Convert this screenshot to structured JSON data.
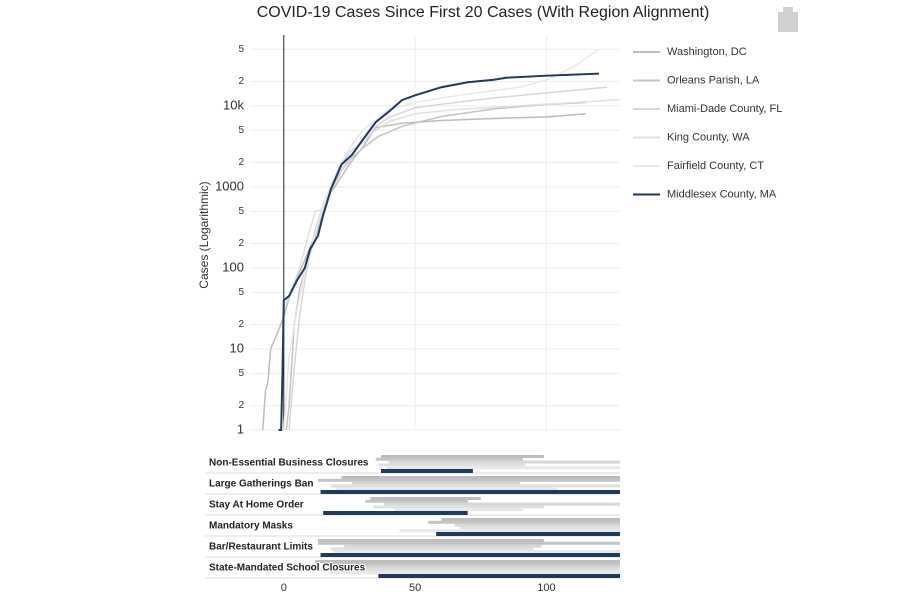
{
  "chart_data": [
    {
      "type": "line",
      "title": "COVID-19 Cases Since First 20 Cases (With Region Alignment)",
      "y_label": "Cases (Logarithmic)",
      "log_y": true,
      "grid": true,
      "legend": "right",
      "xlim": [
        -30,
        128
      ],
      "ylim": [
        1,
        75000
      ],
      "yticks": [
        1,
        2,
        5,
        10,
        {
          "value": 20,
          "label": "2"
        },
        {
          "value": 50,
          "label": "5"
        },
        100,
        {
          "value": 200,
          "label": "2"
        },
        {
          "value": 500,
          "label": "5"
        },
        1000,
        {
          "value": 2000,
          "label": "2"
        },
        {
          "value": 5000,
          "label": "5"
        },
        {
          "value": 10000,
          "label": "10k"
        },
        {
          "value": 20000,
          "label": "2"
        },
        {
          "value": 50000,
          "label": "5"
        }
      ],
      "series": [
        {
          "name": "Washington, DC",
          "color": "#bdbdbd",
          "x": [
            -8,
            -7,
            -6,
            -5,
            -2,
            0,
            3,
            8,
            12,
            18,
            25,
            30,
            35,
            45,
            60,
            80,
            100,
            115
          ],
          "values": [
            1,
            3,
            4,
            10,
            17,
            25,
            55,
            125,
            260,
            850,
            1900,
            3100,
            5400,
            6100,
            6600,
            7000,
            7300,
            8000
          ]
        },
        {
          "name": "Orleans Parish, LA",
          "color": "#c4c4c4",
          "x": [
            1,
            2,
            4,
            6,
            8,
            10,
            14,
            18,
            22,
            26,
            30,
            36,
            45,
            60,
            80,
            100,
            115
          ],
          "values": [
            1,
            2,
            20,
            55,
            90,
            150,
            400,
            900,
            1600,
            2300,
            3000,
            4200,
            5600,
            7400,
            9200,
            10400,
            11000
          ]
        },
        {
          "name": "Miami-Dade County, FL",
          "color": "#d6d6d6",
          "x": [
            2,
            4,
            6,
            8,
            10,
            12,
            15,
            20,
            25,
            30,
            35,
            40,
            50,
            60,
            80,
            100,
            123
          ],
          "values": [
            1,
            6,
            25,
            70,
            150,
            300,
            600,
            1500,
            2700,
            3500,
            5600,
            7200,
            9500,
            10500,
            12500,
            14500,
            17000
          ]
        },
        {
          "name": "King County, WA",
          "color": "#e0e0e0",
          "x": [
            -1,
            0,
            3,
            6,
            9,
            12,
            16,
            20,
            26,
            32,
            40,
            50,
            65,
            80,
            100,
            120,
            128
          ],
          "values": [
            1,
            30,
            55,
            100,
            230,
            500,
            550,
            1300,
            2600,
            4300,
            6400,
            8000,
            9000,
            9600,
            10500,
            11500,
            12000
          ]
        },
        {
          "name": "Fairfield County, CT",
          "color": "#e8e8e8",
          "x": [
            0,
            2,
            5,
            8,
            10,
            13,
            16,
            20,
            25,
            30,
            40,
            50,
            60,
            70,
            80,
            90,
            100,
            110,
            120
          ],
          "values": [
            1,
            8,
            30,
            90,
            160,
            350,
            700,
            1500,
            3000,
            5000,
            9000,
            11000,
            12500,
            14000,
            15500,
            17000,
            21000,
            30000,
            50000
          ]
        },
        {
          "name": "Middlesex County, MA",
          "color": "#1e3a5f",
          "x": [
            -2,
            -1,
            -0.5,
            0,
            2,
            5,
            8,
            10,
            13,
            15,
            18,
            22,
            26,
            30,
            35,
            40,
            45,
            50,
            60,
            70,
            80,
            85,
            100,
            120
          ],
          "values": [
            1,
            1,
            5,
            40,
            45,
            70,
            100,
            170,
            250,
            450,
            950,
            1900,
            2500,
            3800,
            6300,
            8500,
            11800,
            13500,
            17000,
            19600,
            21000,
            22300,
            23600,
            25000
          ]
        }
      ]
    },
    {
      "type": "gantt",
      "xlim": [
        -30,
        128
      ],
      "xticks": [
        0,
        50,
        100
      ],
      "categories": [
        "Non-Essential Business Closures",
        "Large Gatherings Ban",
        "Stay At Home Order",
        "Mandatory Masks",
        "Bar/Restaurant Limits",
        "State-Mandated School Closures"
      ],
      "series": [
        {
          "name": "Washington, DC",
          "color": "#bdbdbd",
          "values": [
            37,
            22,
            33,
            60,
            13,
            12
          ],
          "ends": [
            99,
            null,
            75,
            null,
            99,
            null
          ]
        },
        {
          "name": "Orleans Parish, LA",
          "color": "#c4c4c4",
          "values": [
            35,
            13,
            31,
            55,
            13,
            16
          ],
          "ends": [
            91,
            null,
            70,
            null,
            null,
            null
          ]
        },
        {
          "name": "Miami-Dade County, FL",
          "color": "#d6d6d6",
          "values": [
            40,
            26,
            38,
            65,
            23,
            27
          ],
          "ends": [
            null,
            90,
            null,
            null,
            98,
            null
          ]
        },
        {
          "name": "King County, WA",
          "color": "#e0e0e0",
          "values": [
            36,
            18,
            34,
            67,
            18,
            14
          ],
          "ends": [
            92,
            null,
            99,
            null,
            95,
            null
          ]
        },
        {
          "name": "Fairfield County, CT",
          "color": "#e8e8e8",
          "values": [
            39,
            20,
            42,
            44,
            19,
            17
          ],
          "ends": [
            null,
            104,
            91,
            null,
            null,
            null
          ]
        },
        {
          "name": "Middlesex County, MA",
          "color": "#1e3a5f",
          "values": [
            37,
            14,
            15,
            58,
            14,
            36
          ],
          "ends": [
            72,
            null,
            70,
            null,
            null,
            null
          ]
        }
      ]
    }
  ]
}
